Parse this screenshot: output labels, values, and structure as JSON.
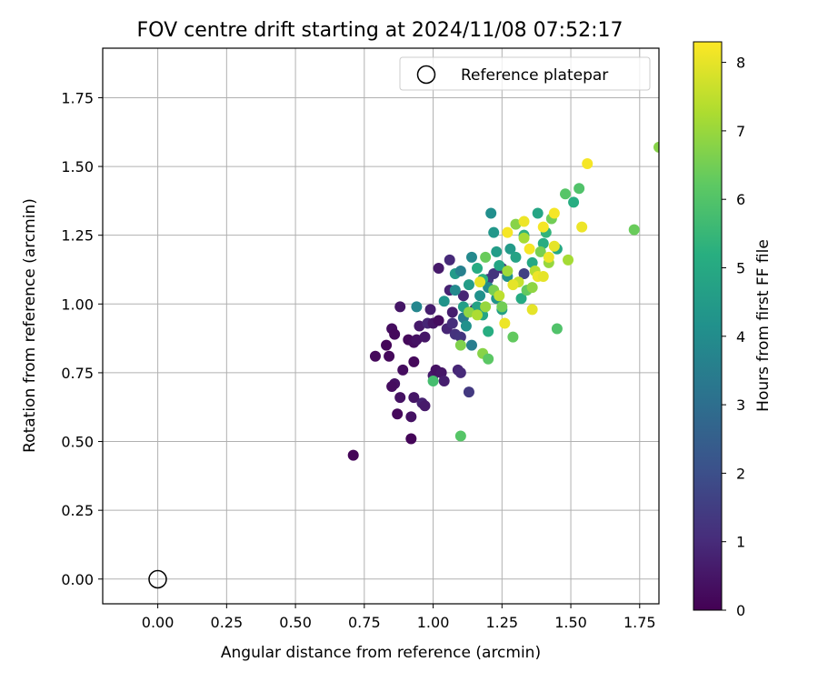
{
  "chart_data": {
    "type": "scatter",
    "title": "FOV centre drift starting at 2024/11/08 07:52:17",
    "xlabel": "Angular distance from reference (arcmin)",
    "ylabel": "Rotation from reference (arcmin)",
    "xlim": [
      -0.2,
      1.82
    ],
    "ylim": [
      -0.09,
      1.93
    ],
    "xticks": [
      0.0,
      0.25,
      0.5,
      0.75,
      1.0,
      1.25,
      1.5,
      1.75
    ],
    "xtick_labels": [
      "0.00",
      "0.25",
      "0.50",
      "0.75",
      "1.00",
      "1.25",
      "1.50",
      "1.75"
    ],
    "yticks": [
      0.0,
      0.25,
      0.5,
      0.75,
      1.0,
      1.25,
      1.5,
      1.75
    ],
    "ytick_labels": [
      "0.00",
      "0.25",
      "0.50",
      "0.75",
      "1.00",
      "1.25",
      "1.50",
      "1.75"
    ],
    "grid": true,
    "legend": {
      "placement": "top-right",
      "entries": [
        "Reference platepar"
      ]
    },
    "reference_point": {
      "x": 0.0,
      "y": 0.0,
      "label": "Reference platepar"
    },
    "colorbar": {
      "label": "Hours from first FF file",
      "range": [
        0,
        8.3
      ],
      "ticks": [
        0,
        1,
        2,
        3,
        4,
        5,
        6,
        7,
        8
      ],
      "tick_labels": [
        "0",
        "1",
        "2",
        "3",
        "4",
        "5",
        "6",
        "7",
        "8"
      ],
      "colormap": "viridis"
    },
    "points": [
      {
        "x": 0.71,
        "y": 0.45,
        "h": 0.1
      },
      {
        "x": 0.79,
        "y": 0.81,
        "h": 0.2
      },
      {
        "x": 0.83,
        "y": 0.85,
        "h": 0.1
      },
      {
        "x": 0.84,
        "y": 0.81,
        "h": 0.2
      },
      {
        "x": 0.85,
        "y": 0.91,
        "h": 0.3
      },
      {
        "x": 0.86,
        "y": 0.89,
        "h": 0.2
      },
      {
        "x": 0.86,
        "y": 0.71,
        "h": 0.4
      },
      {
        "x": 0.85,
        "y": 0.7,
        "h": 0.3
      },
      {
        "x": 0.87,
        "y": 0.6,
        "h": 0.2
      },
      {
        "x": 0.88,
        "y": 0.99,
        "h": 0.5
      },
      {
        "x": 0.89,
        "y": 0.76,
        "h": 0.3
      },
      {
        "x": 0.88,
        "y": 0.66,
        "h": 0.4
      },
      {
        "x": 0.91,
        "y": 0.87,
        "h": 0.2
      },
      {
        "x": 0.92,
        "y": 0.51,
        "h": 0.1
      },
      {
        "x": 0.93,
        "y": 0.79,
        "h": 0.2
      },
      {
        "x": 0.93,
        "y": 0.86,
        "h": 0.3
      },
      {
        "x": 0.92,
        "y": 0.59,
        "h": 0.4
      },
      {
        "x": 0.93,
        "y": 0.66,
        "h": 0.5
      },
      {
        "x": 0.95,
        "y": 0.92,
        "h": 0.6
      },
      {
        "x": 0.94,
        "y": 0.87,
        "h": 0.4
      },
      {
        "x": 0.97,
        "y": 0.88,
        "h": 0.5
      },
      {
        "x": 0.96,
        "y": 0.64,
        "h": 0.8
      },
      {
        "x": 0.97,
        "y": 0.63,
        "h": 0.6
      },
      {
        "x": 0.98,
        "y": 0.93,
        "h": 0.9
      },
      {
        "x": 0.99,
        "y": 0.98,
        "h": 0.7
      },
      {
        "x": 1.0,
        "y": 0.93,
        "h": 0.5
      },
      {
        "x": 1.0,
        "y": 0.74,
        "h": 0.6
      },
      {
        "x": 1.01,
        "y": 0.76,
        "h": 0.4
      },
      {
        "x": 1.02,
        "y": 0.94,
        "h": 0.3
      },
      {
        "x": 1.02,
        "y": 1.13,
        "h": 0.6
      },
      {
        "x": 1.03,
        "y": 0.75,
        "h": 0.5
      },
      {
        "x": 1.04,
        "y": 0.72,
        "h": 0.7
      },
      {
        "x": 1.05,
        "y": 0.91,
        "h": 0.9
      },
      {
        "x": 1.06,
        "y": 1.16,
        "h": 1.0
      },
      {
        "x": 1.06,
        "y": 1.05,
        "h": 0.8
      },
      {
        "x": 1.07,
        "y": 0.97,
        "h": 0.7
      },
      {
        "x": 1.07,
        "y": 0.93,
        "h": 1.1
      },
      {
        "x": 1.08,
        "y": 0.89,
        "h": 1.2
      },
      {
        "x": 1.09,
        "y": 0.76,
        "h": 0.9
      },
      {
        "x": 1.1,
        "y": 0.75,
        "h": 1.0
      },
      {
        "x": 1.1,
        "y": 0.88,
        "h": 1.3
      },
      {
        "x": 1.11,
        "y": 1.03,
        "h": 0.9
      },
      {
        "x": 1.13,
        "y": 0.68,
        "h": 1.4
      },
      {
        "x": 1.15,
        "y": 0.98,
        "h": 1.1
      },
      {
        "x": 1.2,
        "y": 1.09,
        "h": 1.5
      },
      {
        "x": 1.22,
        "y": 1.11,
        "h": 1.3
      },
      {
        "x": 1.25,
        "y": 1.13,
        "h": 1.2
      },
      {
        "x": 1.33,
        "y": 1.11,
        "h": 1.6
      },
      {
        "x": 0.94,
        "y": 0.99,
        "h": 3.8
      },
      {
        "x": 1.0,
        "y": 0.72,
        "h": 5.8
      },
      {
        "x": 1.04,
        "y": 1.01,
        "h": 4.3
      },
      {
        "x": 1.08,
        "y": 1.11,
        "h": 4.5
      },
      {
        "x": 1.08,
        "y": 1.05,
        "h": 3.9
      },
      {
        "x": 1.1,
        "y": 1.12,
        "h": 3.6
      },
      {
        "x": 1.11,
        "y": 0.99,
        "h": 4.7
      },
      {
        "x": 1.11,
        "y": 0.95,
        "h": 3.4
      },
      {
        "x": 1.12,
        "y": 0.92,
        "h": 4.2
      },
      {
        "x": 1.13,
        "y": 1.07,
        "h": 4.6
      },
      {
        "x": 1.14,
        "y": 1.17,
        "h": 3.9
      },
      {
        "x": 1.14,
        "y": 0.85,
        "h": 3.5
      },
      {
        "x": 1.16,
        "y": 0.99,
        "h": 4.8
      },
      {
        "x": 1.16,
        "y": 1.13,
        "h": 5.1
      },
      {
        "x": 1.17,
        "y": 1.03,
        "h": 4.2
      },
      {
        "x": 1.18,
        "y": 0.96,
        "h": 4.9
      },
      {
        "x": 1.18,
        "y": 1.09,
        "h": 5.3
      },
      {
        "x": 1.2,
        "y": 1.06,
        "h": 4.0
      },
      {
        "x": 1.2,
        "y": 0.9,
        "h": 5.2
      },
      {
        "x": 1.21,
        "y": 1.33,
        "h": 4.1
      },
      {
        "x": 1.22,
        "y": 1.26,
        "h": 4.4
      },
      {
        "x": 1.23,
        "y": 1.19,
        "h": 4.6
      },
      {
        "x": 1.23,
        "y": 1.02,
        "h": 4.3
      },
      {
        "x": 1.24,
        "y": 1.14,
        "h": 4.9
      },
      {
        "x": 1.25,
        "y": 0.98,
        "h": 4.7
      },
      {
        "x": 1.27,
        "y": 1.1,
        "h": 4.2
      },
      {
        "x": 1.28,
        "y": 1.2,
        "h": 4.5
      },
      {
        "x": 1.3,
        "y": 1.17,
        "h": 4.8
      },
      {
        "x": 1.32,
        "y": 1.02,
        "h": 5.1
      },
      {
        "x": 1.33,
        "y": 1.25,
        "h": 5.3
      },
      {
        "x": 1.36,
        "y": 1.15,
        "h": 5.0
      },
      {
        "x": 1.38,
        "y": 1.33,
        "h": 4.9
      },
      {
        "x": 1.4,
        "y": 1.22,
        "h": 5.2
      },
      {
        "x": 1.41,
        "y": 1.26,
        "h": 5.4
      },
      {
        "x": 1.45,
        "y": 1.2,
        "h": 5.0
      },
      {
        "x": 1.51,
        "y": 1.37,
        "h": 5.2
      },
      {
        "x": 1.1,
        "y": 0.52,
        "h": 6.1
      },
      {
        "x": 1.1,
        "y": 0.85,
        "h": 6.7
      },
      {
        "x": 1.18,
        "y": 0.82,
        "h": 6.8
      },
      {
        "x": 1.2,
        "y": 0.8,
        "h": 6.2
      },
      {
        "x": 1.29,
        "y": 0.88,
        "h": 6.3
      },
      {
        "x": 1.45,
        "y": 0.91,
        "h": 6.0
      },
      {
        "x": 1.13,
        "y": 0.97,
        "h": 6.9
      },
      {
        "x": 1.16,
        "y": 0.96,
        "h": 7.3
      },
      {
        "x": 1.19,
        "y": 0.99,
        "h": 7.0
      },
      {
        "x": 1.19,
        "y": 1.17,
        "h": 6.4
      },
      {
        "x": 1.22,
        "y": 1.05,
        "h": 6.6
      },
      {
        "x": 1.24,
        "y": 1.03,
        "h": 7.5
      },
      {
        "x": 1.25,
        "y": 0.99,
        "h": 6.5
      },
      {
        "x": 1.27,
        "y": 1.12,
        "h": 7.1
      },
      {
        "x": 1.3,
        "y": 1.29,
        "h": 6.8
      },
      {
        "x": 1.31,
        "y": 1.08,
        "h": 7.6
      },
      {
        "x": 1.33,
        "y": 1.24,
        "h": 7.2
      },
      {
        "x": 1.34,
        "y": 1.05,
        "h": 6.3
      },
      {
        "x": 1.36,
        "y": 1.06,
        "h": 6.9
      },
      {
        "x": 1.37,
        "y": 1.12,
        "h": 7.4
      },
      {
        "x": 1.39,
        "y": 1.19,
        "h": 6.6
      },
      {
        "x": 1.42,
        "y": 1.15,
        "h": 7.0
      },
      {
        "x": 1.43,
        "y": 1.31,
        "h": 6.5
      },
      {
        "x": 1.48,
        "y": 1.4,
        "h": 6.1
      },
      {
        "x": 1.49,
        "y": 1.16,
        "h": 7.2
      },
      {
        "x": 1.53,
        "y": 1.42,
        "h": 6.0
      },
      {
        "x": 1.73,
        "y": 1.27,
        "h": 6.4
      },
      {
        "x": 1.82,
        "y": 1.57,
        "h": 6.8
      },
      {
        "x": 1.17,
        "y": 1.08,
        "h": 8.0
      },
      {
        "x": 1.26,
        "y": 0.93,
        "h": 8.1
      },
      {
        "x": 1.27,
        "y": 1.26,
        "h": 8.2
      },
      {
        "x": 1.29,
        "y": 1.07,
        "h": 8.0
      },
      {
        "x": 1.33,
        "y": 1.3,
        "h": 8.1
      },
      {
        "x": 1.35,
        "y": 1.2,
        "h": 8.2
      },
      {
        "x": 1.36,
        "y": 0.98,
        "h": 8.0
      },
      {
        "x": 1.38,
        "y": 1.1,
        "h": 8.1
      },
      {
        "x": 1.4,
        "y": 1.28,
        "h": 8.2
      },
      {
        "x": 1.4,
        "y": 1.1,
        "h": 8.0
      },
      {
        "x": 1.42,
        "y": 1.17,
        "h": 8.1
      },
      {
        "x": 1.44,
        "y": 1.33,
        "h": 8.2
      },
      {
        "x": 1.44,
        "y": 1.21,
        "h": 8.0
      },
      {
        "x": 1.54,
        "y": 1.28,
        "h": 8.1
      },
      {
        "x": 1.56,
        "y": 1.51,
        "h": 8.2
      }
    ]
  }
}
